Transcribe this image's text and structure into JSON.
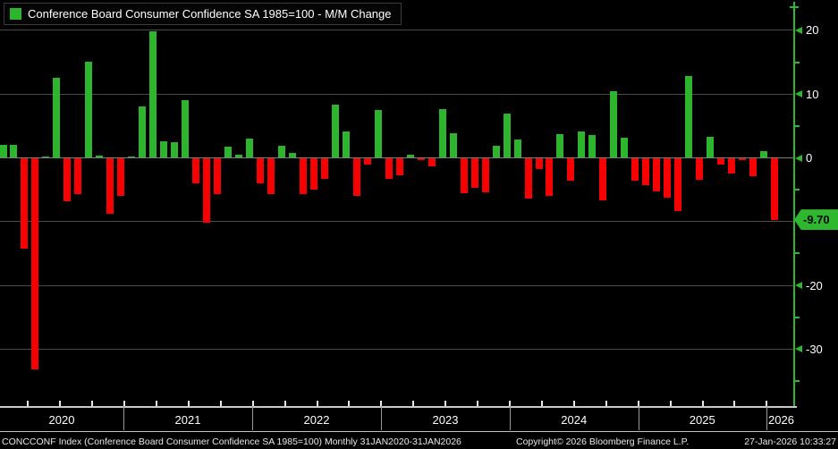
{
  "legend": {
    "title": "Conference Board Consumer Confidence SA 1985=100 - M/M Change"
  },
  "colors": {
    "background": "#000000",
    "positive": "#2db52d",
    "negative": "#f80000",
    "axis_green": "#2db82d",
    "badge_bg": "#2db82d",
    "badge_text": "#000000",
    "gridline": "#4a4a4a",
    "zero_line": "#7d7d7d",
    "x_axis_line": "#c8c8c8",
    "text": "#ffffff"
  },
  "chart_data": {
    "type": "bar",
    "title": "Conference Board Consumer Confidence SA 1985=100 - M/M Change",
    "xlabel": "",
    "ylabel": "",
    "x_unit": "month",
    "period": "Monthly 31JAN2020-31JAN2026",
    "grid": true,
    "legend_position": "top-left",
    "ylim": [
      -39,
      24.5
    ],
    "categories": [
      "2020-01",
      "2020-02",
      "2020-03",
      "2020-04",
      "2020-05",
      "2020-06",
      "2020-07",
      "2020-08",
      "2020-09",
      "2020-10",
      "2020-11",
      "2020-12",
      "2021-01",
      "2021-02",
      "2021-03",
      "2021-04",
      "2021-05",
      "2021-06",
      "2021-07",
      "2021-08",
      "2021-09",
      "2021-10",
      "2021-11",
      "2021-12",
      "2022-01",
      "2022-02",
      "2022-03",
      "2022-04",
      "2022-05",
      "2022-06",
      "2022-07",
      "2022-08",
      "2022-09",
      "2022-10",
      "2022-11",
      "2022-12",
      "2023-01",
      "2023-02",
      "2023-03",
      "2023-04",
      "2023-05",
      "2023-06",
      "2023-07",
      "2023-08",
      "2023-09",
      "2023-10",
      "2023-11",
      "2023-12",
      "2024-01",
      "2024-02",
      "2024-03",
      "2024-04",
      "2024-05",
      "2024-06",
      "2024-07",
      "2024-08",
      "2024-09",
      "2024-10",
      "2024-11",
      "2024-12",
      "2025-01",
      "2025-02",
      "2025-03",
      "2025-04",
      "2025-05",
      "2025-06",
      "2025-07",
      "2025-08",
      "2025-09",
      "2025-10",
      "2025-11",
      "2025-12",
      "2026-01"
    ],
    "values": [
      2.0,
      2.0,
      -14.3,
      -33.2,
      0.2,
      12.5,
      -6.8,
      -5.7,
      15.1,
      0.3,
      -8.8,
      -5.9,
      0.2,
      8.1,
      19.9,
      2.6,
      2.5,
      9.0,
      -4.0,
      -10.1,
      -5.7,
      1.7,
      0.5,
      3.0,
      -4.0,
      -5.7,
      1.9,
      0.8,
      -5.7,
      -5.0,
      -3.3,
      8.3,
      4.1,
      -5.9,
      -1.0,
      7.5,
      -3.3,
      -2.8,
      0.5,
      -0.4,
      -1.4,
      7.6,
      3.9,
      -5.6,
      -4.7,
      -5.4,
      1.9,
      7.0,
      2.9,
      -6.4,
      -1.7,
      -5.9,
      3.7,
      -3.6,
      4.1,
      3.6,
      -6.7,
      10.5,
      3.1,
      -3.6,
      -4.3,
      -5.3,
      -6.3,
      -8.4,
      12.9,
      -3.4,
      3.3,
      -1.1,
      -2.4,
      -0.3,
      -2.9,
      1.1,
      -9.7
    ],
    "y_axis": {
      "major_tick_labels": [
        "20",
        "10",
        "0",
        "-20",
        "-30"
      ],
      "major_tick_values": [
        20,
        10,
        0,
        -20,
        -30
      ],
      "minor_tick_values": [
        15,
        5,
        -5,
        -15,
        -25,
        -35
      ],
      "gridline_values": [
        20,
        10,
        0,
        -10,
        -20,
        -30
      ]
    },
    "x_axis": {
      "year_labels": [
        "2020",
        "2021",
        "2022",
        "2023",
        "2024",
        "2025",
        "2026"
      ]
    },
    "last_point": {
      "month": "2026-01",
      "value": -9.7,
      "label": "-9.70"
    }
  },
  "footer": {
    "description": "CONCCONF Index (Conference Board Consumer Confidence SA 1985=100) Monthly 31JAN2020-31JAN2026",
    "copyright": "Copyright© 2026 Bloomberg Finance L.P.",
    "timestamp": "27-Jan-2026 10:33:27"
  }
}
